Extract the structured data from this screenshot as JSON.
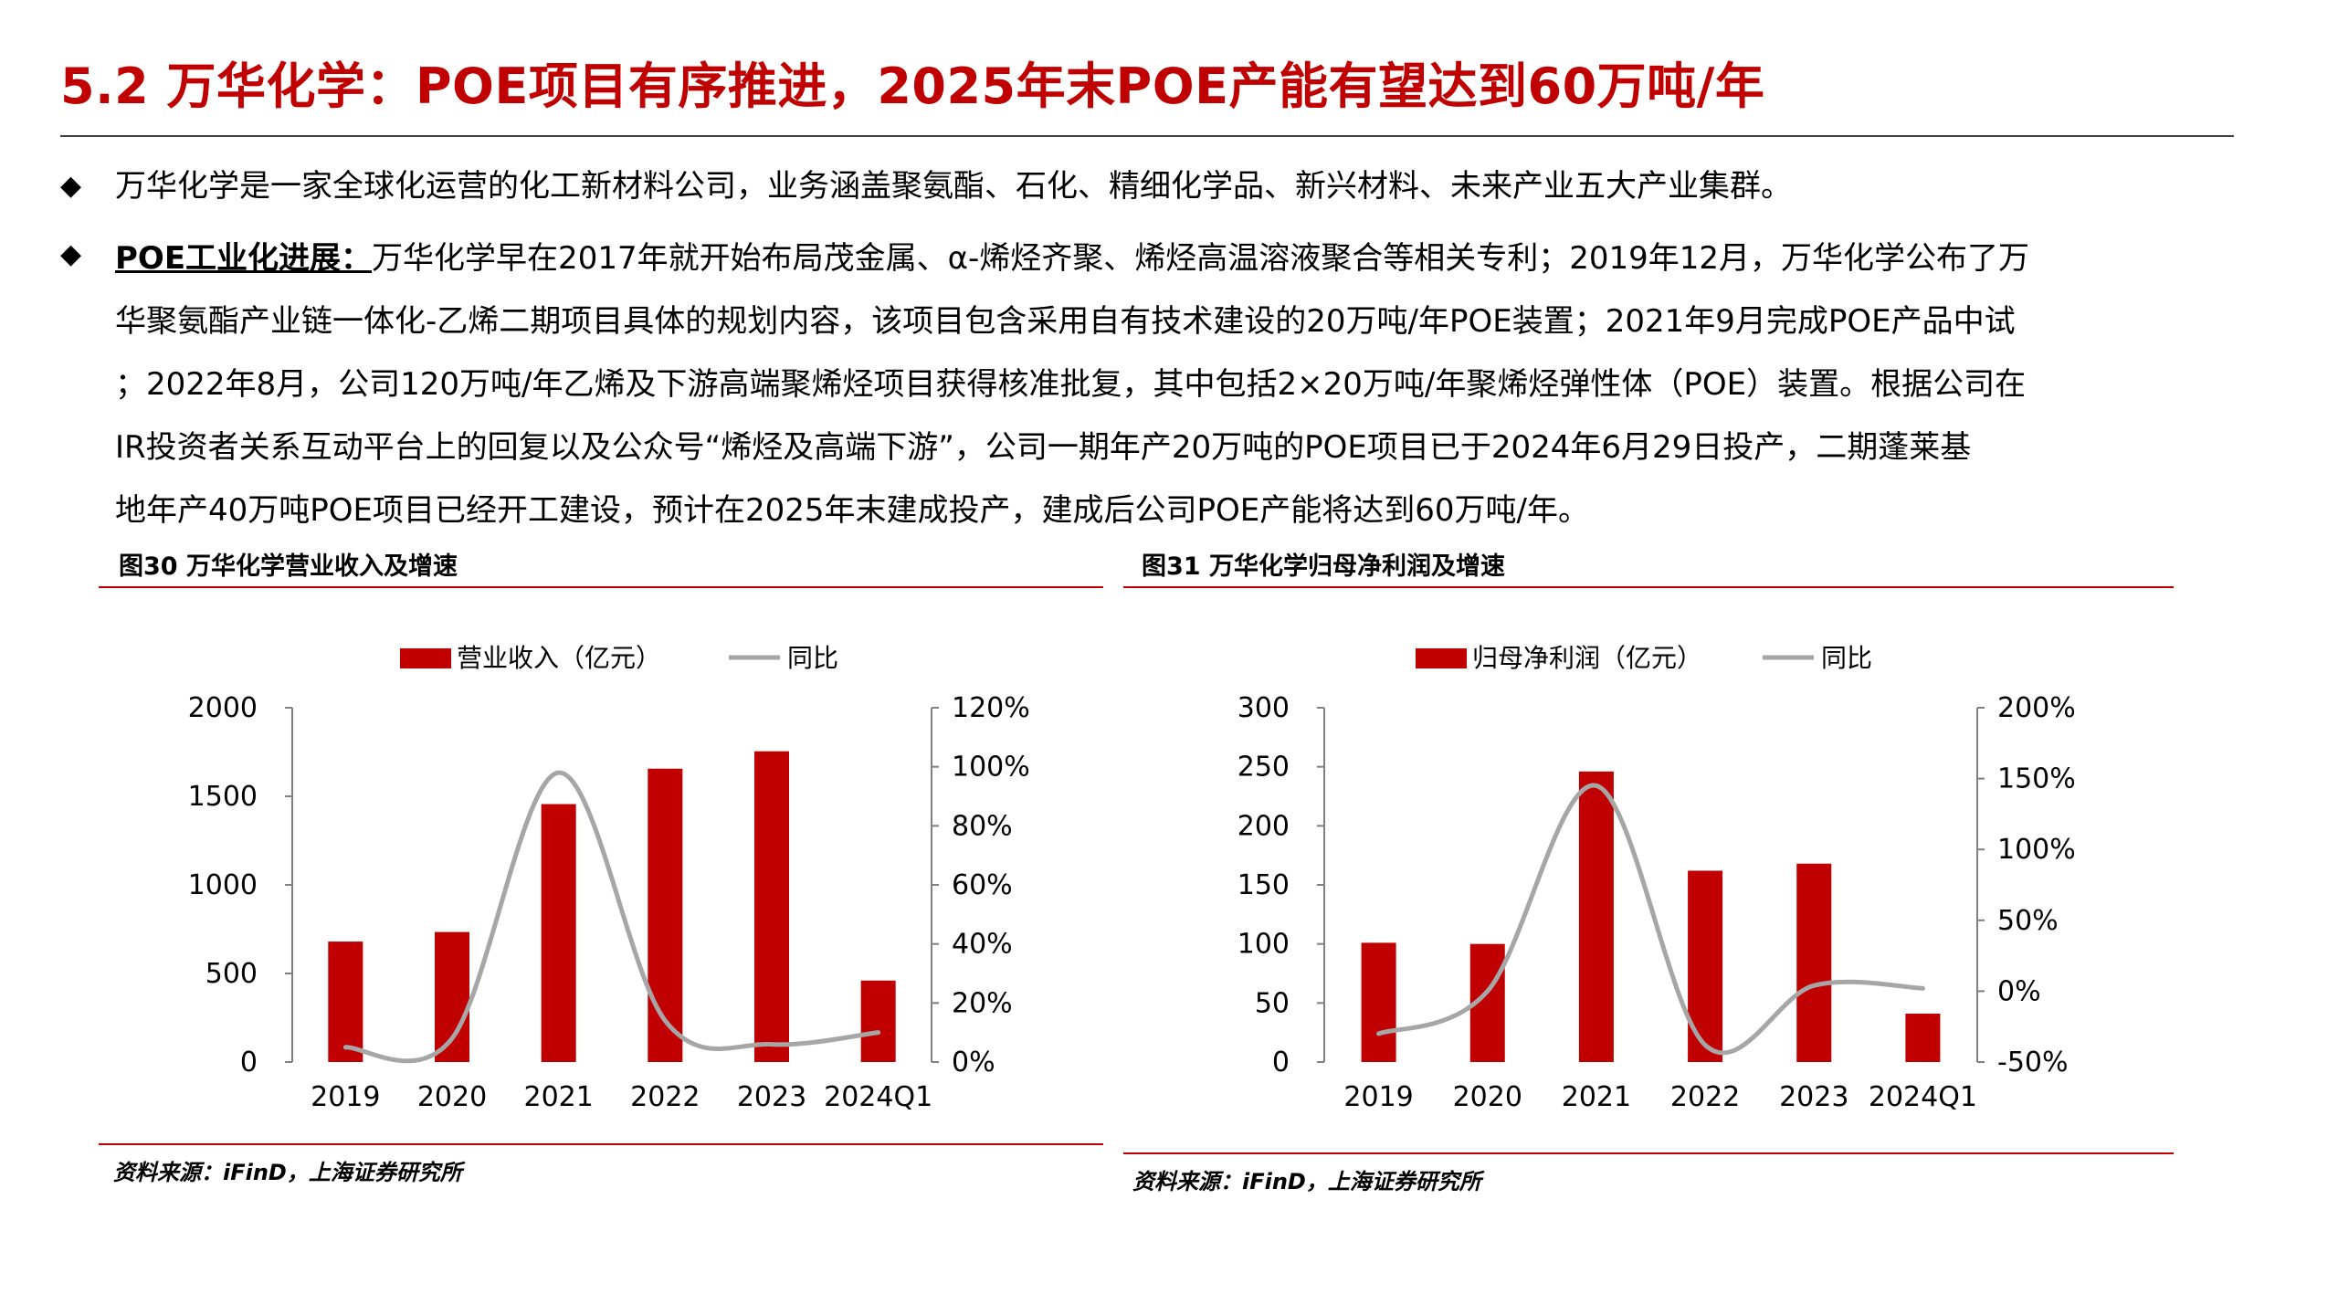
{
  "title": "5.2 万华化学：POE项目有序推进，2025年末POE产能有望达到60万吨/年",
  "bullets": [
    {
      "text": "万华化学是一家全球化运营的化工新材料公司，业务涵盖聚氨酯、石化、精细化学品、新兴材料、未来产业五大产业集群。"
    }
  ],
  "paragraph": {
    "lead": "POE工业化进展：",
    "lines": [
      "万华化学早在2017年就开始布局茂金属、α-烯烃齐聚、烯烃高温溶液聚合等相关专利；2019年12月，万华化学公布了万",
      "华聚氨酯产业链一体化-乙烯二期项目具体的规划内容，该项目包含采用自有技术建设的20万吨/年POE装置；2021年9月完成POE产品中试",
      "；2022年8月，公司120万吨/年乙烯及下游高端聚烯烃项目获得核准批复，其中包括2×20万吨/年聚烯烃弹性体（POE）装置。根据公司在",
      "IR投资者关系互动平台上的回复以及公众号“烯烃及高端下游”，公司一期年产20万吨的POE项目已于2024年6月29日投产，二期蓬莱基",
      "地年产40万吨POE项目已经开工建设，预计在2025年末建成投产，建成后公司POE产能将达到60万吨/年。"
    ]
  },
  "figures": [
    {
      "caption": "图30 万华化学营业收入及增速",
      "source": "资料来源：iFinD，上海证券研究所"
    },
    {
      "caption": "图31 万华化学归母净利润及增速",
      "source": "资料来源：iFinD，上海证券研究所"
    }
  ],
  "colors": {
    "accent": "#c00000",
    "bar": "#c00000",
    "line": "#a6a6a6"
  },
  "chart_data": [
    {
      "type": "bar",
      "categories": [
        "2019",
        "2020",
        "2021",
        "2022",
        "2023",
        "2024Q1"
      ],
      "series": [
        {
          "name": "营业收入（亿元）",
          "type": "bar",
          "axis": "left",
          "values": [
            680,
            734,
            1456,
            1656,
            1754,
            460
          ]
        },
        {
          "name": "同比",
          "type": "line",
          "axis": "right",
          "values": [
            5,
            8,
            98,
            14,
            6,
            10
          ]
        }
      ],
      "yleft": {
        "min": 0,
        "max": 2000,
        "ticks": [
          "0",
          "500",
          "1000",
          "1500",
          "2000"
        ],
        "step": 500
      },
      "yright": {
        "min": 0,
        "max": 120,
        "ticks": [
          "0%",
          "20%",
          "40%",
          "60%",
          "80%",
          "100%",
          "120%"
        ],
        "step": 20
      },
      "legend": [
        "营业收入（亿元）",
        "同比"
      ],
      "legend_position": "top"
    },
    {
      "type": "bar",
      "categories": [
        "2019",
        "2020",
        "2021",
        "2022",
        "2023",
        "2024Q1"
      ],
      "series": [
        {
          "name": "归母净利润（亿元）",
          "type": "bar",
          "axis": "left",
          "values": [
            101,
            100,
            246,
            162,
            168,
            41
          ]
        },
        {
          "name": "同比",
          "type": "line",
          "axis": "right",
          "values": [
            -30,
            0,
            145,
            -38,
            4,
            2
          ]
        }
      ],
      "yleft": {
        "min": 0,
        "max": 300,
        "ticks": [
          "0",
          "50",
          "100",
          "150",
          "200",
          "250",
          "300"
        ],
        "step": 50
      },
      "yright": {
        "min": -50,
        "max": 200,
        "ticks": [
          "-50%",
          "0%",
          "50%",
          "100%",
          "150%",
          "200%"
        ],
        "step": 50
      },
      "legend": [
        "归母净利润（亿元）",
        "同比"
      ],
      "legend_position": "top"
    }
  ]
}
